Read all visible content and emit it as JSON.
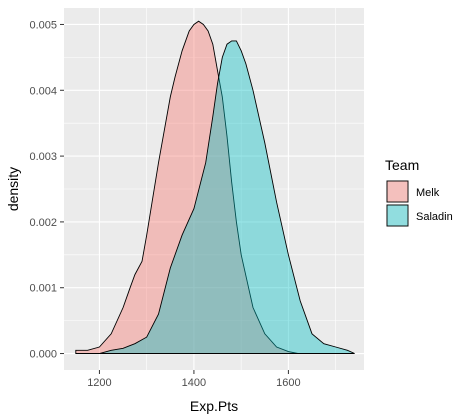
{
  "chart_data": {
    "type": "area",
    "subtype": "density",
    "xlabel": "Exp.Pts",
    "ylabel": "density",
    "xlim": [
      1125,
      1760
    ],
    "ylim": [
      -0.00025,
      0.00525
    ],
    "x_ticks": [
      1200,
      1400,
      1600
    ],
    "x_tick_labels": [
      "1200",
      "1400",
      "1600"
    ],
    "y_ticks": [
      0.0,
      0.001,
      0.002,
      0.003,
      0.004,
      0.005
    ],
    "y_tick_labels": [
      "0.000",
      "0.001",
      "0.002",
      "0.003",
      "0.004",
      "0.005"
    ],
    "grid": true,
    "background": "#ebebeb",
    "legend": {
      "title": "Team",
      "position": "right"
    },
    "series": [
      {
        "name": "Melk",
        "color": "#f8766d",
        "x": [
          1150,
          1175,
          1200,
          1225,
          1250,
          1265,
          1275,
          1290,
          1300,
          1325,
          1350,
          1360,
          1375,
          1390,
          1400,
          1410,
          1420,
          1430,
          1440,
          1450,
          1460,
          1470,
          1480,
          1490,
          1500,
          1525,
          1550,
          1575,
          1600,
          1620
        ],
        "values": [
          5e-05,
          5e-05,
          0.0001,
          0.0003,
          0.0007,
          0.001,
          0.0012,
          0.0014,
          0.0018,
          0.0029,
          0.0039,
          0.0042,
          0.0046,
          0.0049,
          0.005,
          0.00505,
          0.005,
          0.0049,
          0.0047,
          0.0043,
          0.0039,
          0.0033,
          0.0026,
          0.002,
          0.0015,
          0.0007,
          0.0003,
          0.0001,
          3e-05,
          0.0
        ]
      },
      {
        "name": "Saladin",
        "color": "#00bfc4",
        "x": [
          1150,
          1175,
          1200,
          1225,
          1250,
          1275,
          1300,
          1325,
          1350,
          1375,
          1400,
          1425,
          1440,
          1450,
          1460,
          1470,
          1480,
          1490,
          1500,
          1510,
          1525,
          1550,
          1575,
          1600,
          1625,
          1650,
          1675,
          1700,
          1725,
          1740
        ],
        "values": [
          0.0,
          0.0,
          0.0,
          5e-05,
          8e-05,
          0.00015,
          0.00025,
          0.0006,
          0.0013,
          0.0018,
          0.0022,
          0.0029,
          0.0036,
          0.0041,
          0.0045,
          0.0047,
          0.00475,
          0.00475,
          0.0046,
          0.0044,
          0.004,
          0.0032,
          0.0023,
          0.0015,
          0.0008,
          0.0003,
          0.00015,
          0.0001,
          5e-05,
          0.0
        ]
      }
    ]
  }
}
